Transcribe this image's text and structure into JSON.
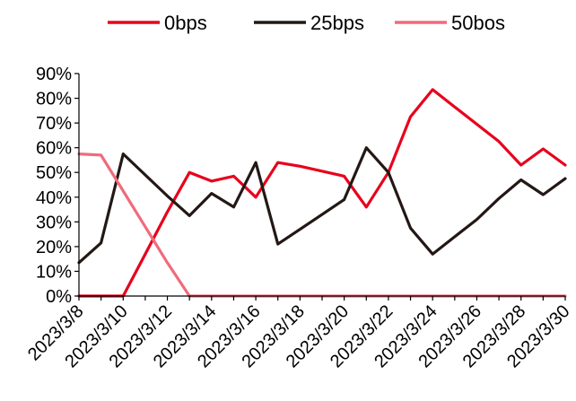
{
  "chart_data": {
    "type": "line",
    "x": [
      "2023/3/8",
      "2023/3/9",
      "2023/3/10",
      "2023/3/11",
      "2023/3/12",
      "2023/3/13",
      "2023/3/14",
      "2023/3/15",
      "2023/3/16",
      "2023/3/17",
      "2023/3/18",
      "2023/3/19",
      "2023/3/20",
      "2023/3/21",
      "2023/3/22",
      "2023/3/23",
      "2023/3/24",
      "2023/3/25",
      "2023/3/26",
      "2023/3/27",
      "2023/3/28",
      "2023/3/29",
      "2023/3/30"
    ],
    "x_tick_labels": [
      "2023/3/8",
      "2023/3/10",
      "2023/3/12",
      "2023/3/14",
      "2023/3/16",
      "2023/3/18",
      "2023/3/20",
      "2023/3/22",
      "2023/3/24",
      "2023/3/26",
      "2023/3/28",
      "2023/3/30"
    ],
    "y_tick_labels": [
      "0%",
      "10%",
      "20%",
      "30%",
      "40%",
      "50%",
      "60%",
      "70%",
      "80%",
      "90%"
    ],
    "ylim": [
      0,
      90
    ],
    "grid": false,
    "legend_position": "top",
    "series": [
      {
        "name": "0bps",
        "color": "#e8001c",
        "values": [
          0,
          0,
          0,
          17,
          34,
          50,
          46.5,
          48.5,
          40,
          54,
          52.5,
          50.5,
          48.5,
          36,
          50,
          72.5,
          83.5,
          76.5,
          69.5,
          62.5,
          53,
          59.5,
          53
        ]
      },
      {
        "name": "25bps",
        "color": "#231815",
        "values": [
          13.5,
          21.5,
          57.5,
          49,
          40.5,
          32.5,
          41.5,
          36,
          54,
          21,
          27,
          33,
          39,
          60,
          50,
          27.5,
          17,
          24,
          31,
          39.5,
          47,
          41,
          47.5
        ]
      },
      {
        "name": "50bos",
        "color": "#f06b7c",
        "values": [
          57.5,
          57,
          42.5,
          28,
          13.5,
          0,
          0,
          0,
          0,
          0,
          0,
          0,
          0,
          0,
          0,
          0,
          0,
          0,
          0,
          0,
          0,
          0,
          0
        ]
      }
    ]
  }
}
